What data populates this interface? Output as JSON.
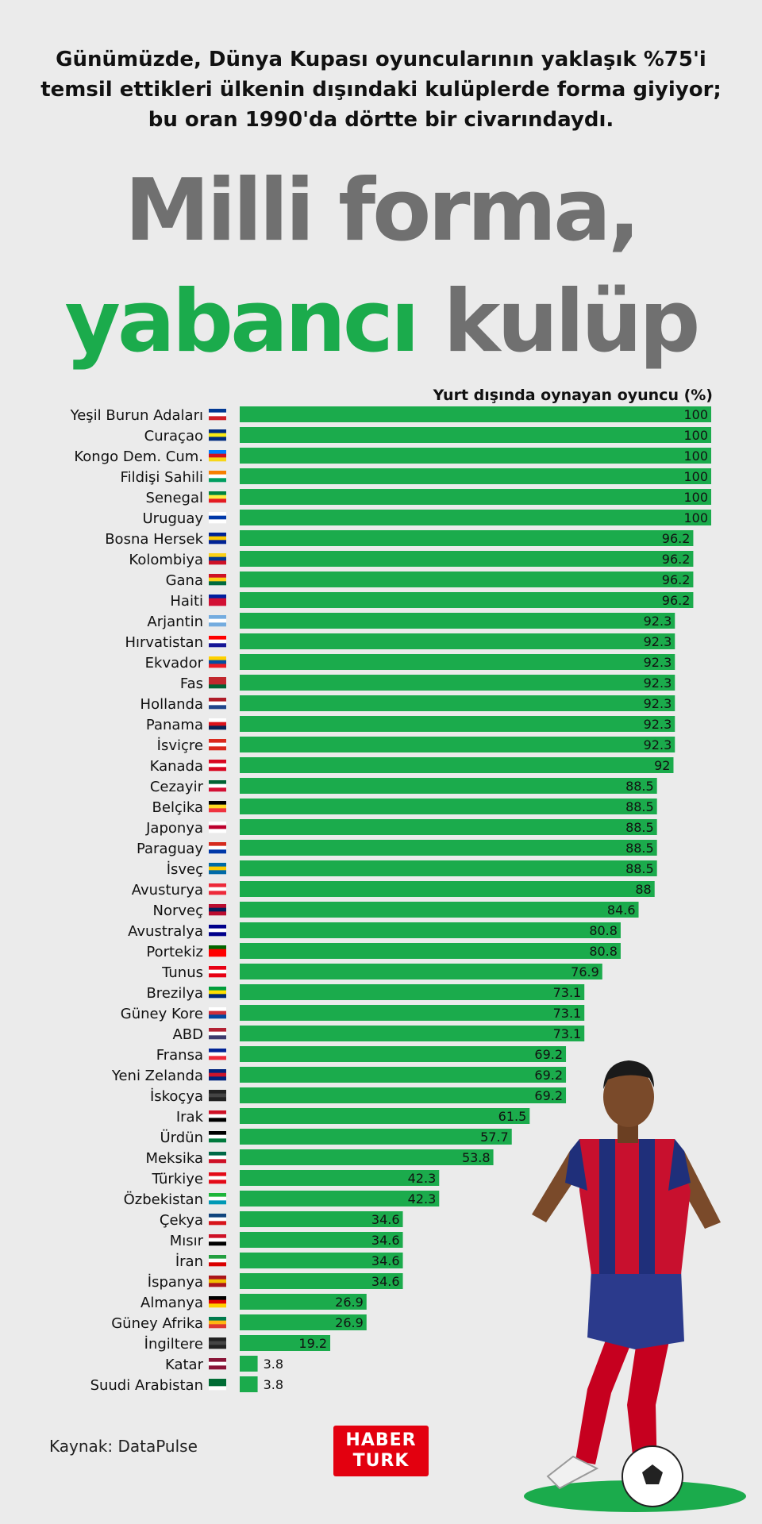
{
  "header": {
    "subtitle": "Günümüzde, Dünya Kupası oyuncularının yaklaşık %75'i temsil ettikleri ülkenin dışındaki kulüplerde forma giyiyor; bu oran 1990'da dörtte bir civarındaydı.",
    "title_line1": "Milli forma,",
    "title_line2_green": "yabancı",
    "title_line2_grey": "kulüp"
  },
  "colors": {
    "bar": "#1bab4c",
    "title_green": "#1bab4c",
    "title_grey": "#707070",
    "background": "#ebebeb",
    "logo": "#e3000f"
  },
  "chart_data": {
    "type": "bar",
    "orientation": "horizontal",
    "title": "Yurt dışında oynayan oyuncu (%)",
    "categories": [
      "Yeşil Burun Adaları",
      "Curaçao",
      "Kongo Dem. Cum.",
      "Fildişi Sahili",
      "Senegal",
      "Uruguay",
      "Bosna Hersek",
      "Kolombiya",
      "Gana",
      "Haiti",
      "Arjantin",
      "Hırvatistan",
      "Ekvador",
      "Fas",
      "Hollanda",
      "Panama",
      "İsviçre",
      "Kanada",
      "Cezayir",
      "Belçika",
      "Japonya",
      "Paraguay",
      "İsveç",
      "Avusturya",
      "Norveç",
      "Avustralya",
      "Portekiz",
      "Tunus",
      "Brezilya",
      "Güney Kore",
      "ABD",
      "Fransa",
      "Yeni Zelanda",
      "İskoçya",
      "Irak",
      "Ürdün",
      "Meksika",
      "Türkiye",
      "Özbekistan",
      "Çekya",
      "Mısır",
      "İran",
      "İspanya",
      "Almanya",
      "Güney Afrika",
      "İngiltere",
      "Katar",
      "Suudi Arabistan"
    ],
    "values": [
      100,
      100,
      100,
      100,
      100,
      100,
      96.2,
      96.2,
      96.2,
      96.2,
      92.3,
      92.3,
      92.3,
      92.3,
      92.3,
      92.3,
      92.3,
      92,
      88.5,
      88.5,
      88.5,
      88.5,
      88.5,
      88,
      84.6,
      80.8,
      80.8,
      76.9,
      73.1,
      73.1,
      73.1,
      69.2,
      69.2,
      69.2,
      61.5,
      57.7,
      53.8,
      42.3,
      42.3,
      34.6,
      34.6,
      34.6,
      34.6,
      26.9,
      26.9,
      19.2,
      3.8,
      3.8
    ],
    "labels": [
      "100",
      "100",
      "100",
      "100",
      "100",
      "100",
      "96.2",
      "96.2",
      "96.2",
      "96.2",
      "92.3",
      "92.3",
      "92.3",
      "92.3",
      "92.3",
      "92.3",
      "92.3",
      "92",
      "88.5",
      "88.5",
      "88.5",
      "88.5",
      "88.5",
      "88",
      "84.6",
      "80.8",
      "80.8",
      "76.9",
      "73.1",
      "73.1",
      "73.1",
      "69.2",
      "69.2",
      "69.2",
      "61.5",
      "57.7",
      "53.8",
      "42.3",
      "42.3",
      "34.6",
      "34.6",
      "34.6",
      "34.6",
      "26.9",
      "26.9",
      "19.2",
      "3.8",
      "3.8"
    ],
    "flags": [
      [
        "#003893",
        "#ffffff",
        "#cf2027"
      ],
      [
        "#002b7f",
        "#f9e814",
        "#002b7f"
      ],
      [
        "#007fff",
        "#ce1021",
        "#f7d618"
      ],
      [
        "#f77f00",
        "#ffffff",
        "#009e60"
      ],
      [
        "#00853f",
        "#fdef42",
        "#e31b23"
      ],
      [
        "#ffffff",
        "#0038a8",
        "#ffffff"
      ],
      [
        "#002395",
        "#fecb00",
        "#002395"
      ],
      [
        "#fcd116",
        "#003893",
        "#ce1126"
      ],
      [
        "#ce1126",
        "#fcd116",
        "#006b3f"
      ],
      [
        "#00209f",
        "#d21034",
        "#d21034"
      ],
      [
        "#74acdf",
        "#ffffff",
        "#74acdf"
      ],
      [
        "#ff0000",
        "#ffffff",
        "#171796"
      ],
      [
        "#ffd100",
        "#034ea2",
        "#ed1c24"
      ],
      [
        "#c1272d",
        "#c1272d",
        "#006233"
      ],
      [
        "#ae1c28",
        "#ffffff",
        "#21468b"
      ],
      [
        "#ffffff",
        "#da121a",
        "#072357"
      ],
      [
        "#da291c",
        "#ffffff",
        "#da291c"
      ],
      [
        "#d80621",
        "#ffffff",
        "#d80621"
      ],
      [
        "#006233",
        "#ffffff",
        "#d21034"
      ],
      [
        "#000000",
        "#fdda24",
        "#ef3340"
      ],
      [
        "#ffffff",
        "#bc002d",
        "#ffffff"
      ],
      [
        "#d52b1e",
        "#ffffff",
        "#0038a8"
      ],
      [
        "#006aa7",
        "#fecc00",
        "#006aa7"
      ],
      [
        "#ed2939",
        "#ffffff",
        "#ed2939"
      ],
      [
        "#ba0c2f",
        "#00205b",
        "#ba0c2f"
      ],
      [
        "#00008b",
        "#ffffff",
        "#00008b"
      ],
      [
        "#006600",
        "#ff0000",
        "#ff0000"
      ],
      [
        "#e70013",
        "#ffffff",
        "#e70013"
      ],
      [
        "#009c3b",
        "#ffdf00",
        "#002776"
      ],
      [
        "#ffffff",
        "#cd2e3a",
        "#0047a0"
      ],
      [
        "#b22234",
        "#ffffff",
        "#3c3b6e"
      ],
      [
        "#002395",
        "#ffffff",
        "#ed2939"
      ],
      [
        "#00247d",
        "#cc142b",
        "#00247d"
      ],
      [
        "#222222",
        "#444444",
        "#222222"
      ],
      [
        "#ce1126",
        "#ffffff",
        "#000000"
      ],
      [
        "#000000",
        "#ffffff",
        "#007a3d"
      ],
      [
        "#006847",
        "#ffffff",
        "#ce1126"
      ],
      [
        "#e30a17",
        "#ffffff",
        "#e30a17"
      ],
      [
        "#1eb53a",
        "#ffffff",
        "#0099b5"
      ],
      [
        "#11457e",
        "#ffffff",
        "#d7141a"
      ],
      [
        "#ce1126",
        "#ffffff",
        "#000000"
      ],
      [
        "#239f40",
        "#ffffff",
        "#da0000"
      ],
      [
        "#aa151b",
        "#f1bf00",
        "#aa151b"
      ],
      [
        "#000000",
        "#dd0000",
        "#ffce00"
      ],
      [
        "#007a4d",
        "#ffb612",
        "#de3831"
      ],
      [
        "#222222",
        "#444444",
        "#222222"
      ],
      [
        "#8a1538",
        "#ffffff",
        "#8a1538"
      ],
      [
        "#006c35",
        "#006c35",
        "#ffffff"
      ]
    ],
    "xlim": [
      0,
      100
    ]
  },
  "footer": {
    "source": "Kaynak: DataPulse",
    "logo_line1": "HABER",
    "logo_line2": "TURK"
  }
}
